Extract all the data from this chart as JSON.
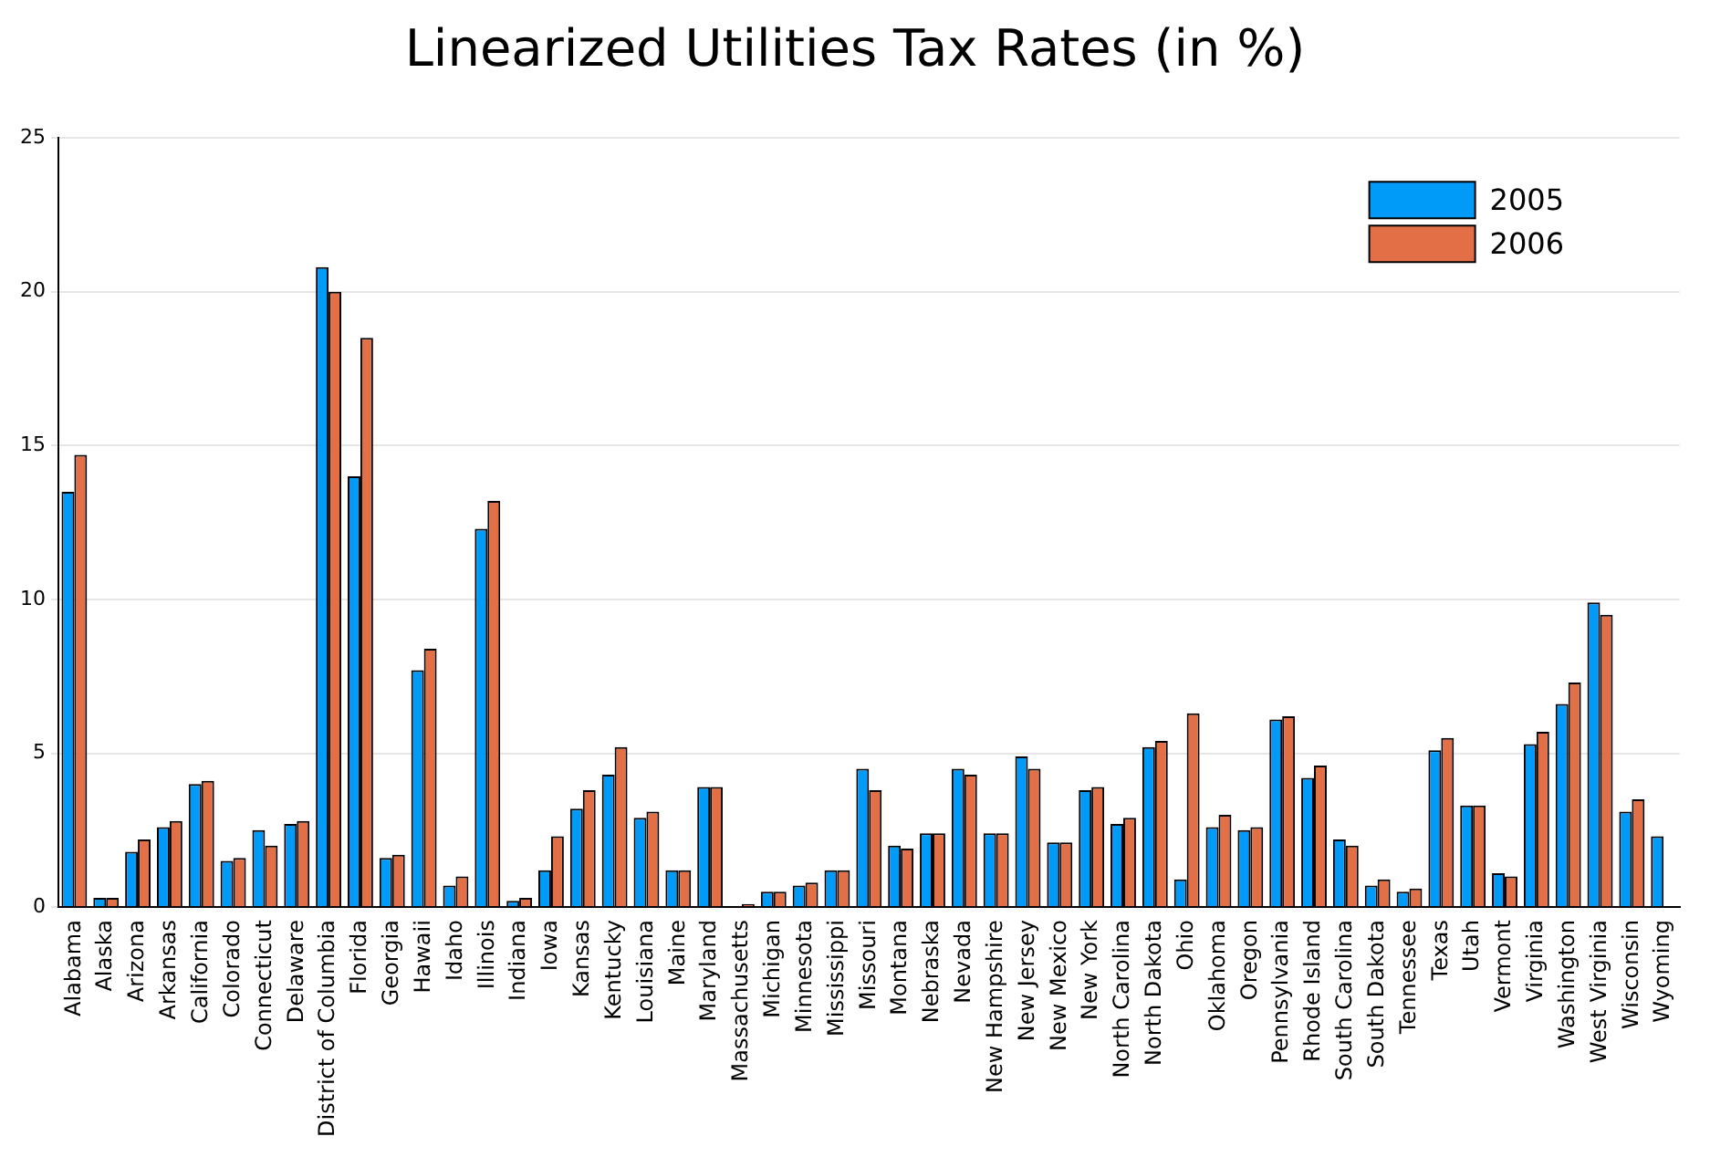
{
  "chart_data": {
    "type": "bar",
    "title": "Linearized Utilities Tax Rates (in %)",
    "categories": [
      "Alabama",
      "Alaska",
      "Arizona",
      "Arkansas",
      "California",
      "Colorado",
      "Connecticut",
      "Delaware",
      "District of Columbia",
      "Florida",
      "Georgia",
      "Hawaii",
      "Idaho",
      "Illinois",
      "Indiana",
      "Iowa",
      "Kansas",
      "Kentucky",
      "Louisiana",
      "Maine",
      "Maryland",
      "Massachusetts",
      "Michigan",
      "Minnesota",
      "Mississippi",
      "Missouri",
      "Montana",
      "Nebraska",
      "Nevada",
      "New Hampshire",
      "New Jersey",
      "New Mexico",
      "New York",
      "North Carolina",
      "North Dakota",
      "Ohio",
      "Oklahoma",
      "Oregon",
      "Pennsylvania",
      "Rhode Island",
      "South Carolina",
      "South Dakota",
      "Tennessee",
      "Texas",
      "Utah",
      "Vermont",
      "Virginia",
      "Washington",
      "West Virginia",
      "Wisconsin",
      "Wyoming"
    ],
    "series": [
      {
        "name": "2005",
        "color": "#009af9",
        "values": [
          13.5,
          0.3,
          1.8,
          2.6,
          4.0,
          1.5,
          2.5,
          2.7,
          20.8,
          14.0,
          1.6,
          7.7,
          0.7,
          12.3,
          0.2,
          1.2,
          3.2,
          4.3,
          2.9,
          1.2,
          3.9,
          0,
          0.5,
          0.7,
          1.2,
          4.5,
          2.0,
          2.4,
          4.5,
          2.4,
          4.9,
          2.1,
          3.8,
          2.7,
          5.2,
          0.9,
          2.6,
          2.5,
          6.1,
          4.2,
          2.2,
          0.7,
          0.5,
          5.1,
          3.3,
          1.1,
          5.3,
          6.6,
          9.9,
          3.1,
          2.3
        ]
      },
      {
        "name": "2006",
        "color": "#e26f46",
        "values": [
          14.7,
          0.3,
          2.2,
          2.8,
          4.1,
          1.6,
          2.0,
          2.8,
          20.0,
          18.5,
          1.7,
          8.4,
          1.0,
          13.2,
          0.3,
          2.3,
          3.8,
          5.2,
          3.1,
          1.2,
          3.9,
          0.1,
          0.5,
          0.8,
          1.2,
          3.8,
          1.9,
          2.4,
          4.3,
          2.4,
          4.5,
          2.1,
          3.9,
          2.9,
          5.4,
          6.3,
          3.0,
          2.6,
          6.2,
          4.6,
          2.0,
          0.9,
          0.6,
          5.5,
          3.3,
          1.0,
          5.7,
          7.3,
          9.5,
          3.5,
          null
        ]
      }
    ],
    "ylim": [
      0,
      25
    ],
    "yticks": [
      0,
      5,
      10,
      15,
      20,
      25
    ],
    "grid": "y",
    "legend": "top right"
  }
}
